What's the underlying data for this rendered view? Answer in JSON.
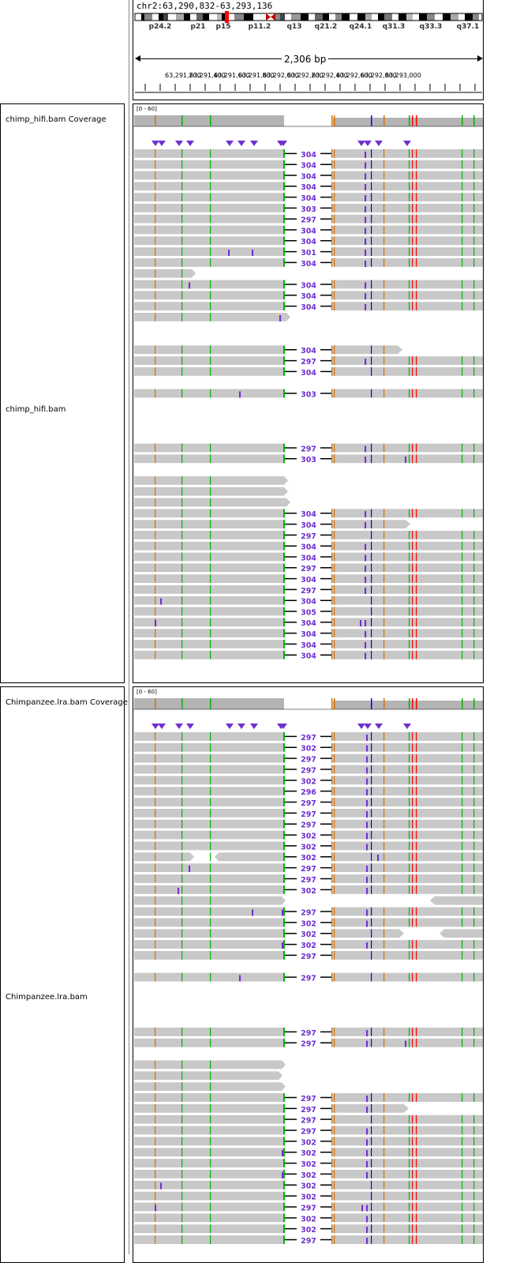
{
  "locus": "chr2:63,290,832-63,293,136",
  "bands": [
    "p24.2",
    "p21",
    "p15",
    "p11.2",
    "q13",
    "q21.2",
    "q24.1",
    "q31.3",
    "q33.3",
    "q37.1"
  ],
  "ruler": {
    "span_label": "2,306 bp",
    "tick_labels": [
      "63,291,200",
      "63,291,400",
      "63,291,600",
      "63,291,800",
      "63,292,000",
      "63,292,200",
      "63,292,400",
      "63,292,600",
      "63,292,800",
      "63,293,000"
    ]
  },
  "tracks": {
    "hifi_cov_name": "chimp_hifi.bam Coverage",
    "hifi_name": "chimp_hifi.bam",
    "lra_cov_name": "Chimpanzee.lra.bam Coverage",
    "lra_name": "Chimpanzee.lra.bam",
    "cov_range": "[0 - 60]"
  },
  "colors": {
    "read": "#c8c8c8",
    "coverage": "#b4b4b4",
    "insertion": "#7030d0",
    "del_label": "#7030d0",
    "mm_A": "#00b300",
    "mm_C": "#0000ff",
    "mm_G": "#d17105",
    "mm_T": "#ff0000"
  },
  "hifi_reads": [
    {
      "type": "split",
      "label": "304",
      "ins": [
        463
      ]
    },
    {
      "type": "split",
      "label": "304",
      "ins": [
        463
      ]
    },
    {
      "type": "split",
      "label": "304",
      "ins": [
        463
      ]
    },
    {
      "type": "split",
      "label": "304",
      "ins": [
        463
      ]
    },
    {
      "type": "split",
      "label": "304",
      "ins": [
        463
      ]
    },
    {
      "type": "split",
      "label": "303",
      "ins": [
        463
      ]
    },
    {
      "type": "split",
      "label": "297",
      "ins": [
        463
      ]
    },
    {
      "type": "split",
      "label": "304",
      "ins": [
        463
      ]
    },
    {
      "type": "split",
      "label": "304",
      "ins": [
        463
      ]
    },
    {
      "type": "split",
      "label": "301",
      "ins": [
        290,
        320,
        463
      ]
    },
    {
      "type": "split",
      "label": "304",
      "ins": [
        463
      ]
    },
    {
      "type": "leftonly",
      "end": 248
    },
    {
      "type": "split",
      "label": "304",
      "ins": [
        240,
        463
      ]
    },
    {
      "type": "split",
      "label": "304",
      "ins": [
        463
      ]
    },
    {
      "type": "split",
      "label": "304",
      "ins": [
        463
      ]
    },
    {
      "type": "leftonly",
      "end": 368,
      "ins": [
        355
      ]
    },
    {
      "type": "empty"
    },
    {
      "type": "empty"
    },
    {
      "type": "split",
      "label": "304",
      "rightEnd": 510
    },
    {
      "type": "split",
      "label": "297",
      "ins": [
        463
      ]
    },
    {
      "type": "split",
      "label": "304"
    },
    {
      "type": "empty"
    },
    {
      "type": "split",
      "label": "303",
      "ins": [
        304
      ]
    },
    {
      "type": "empty"
    },
    {
      "type": "empty"
    },
    {
      "type": "empty"
    },
    {
      "type": "empty"
    },
    {
      "type": "split",
      "label": "297",
      "ins": [
        463
      ]
    },
    {
      "type": "split",
      "label": "303",
      "ins": [
        463,
        514
      ]
    },
    {
      "type": "empty"
    },
    {
      "type": "leftonly",
      "end": 365
    },
    {
      "type": "leftonly",
      "end": 365
    },
    {
      "type": "leftonly",
      "end": 368
    },
    {
      "type": "split",
      "label": "304",
      "ins": [
        463
      ]
    },
    {
      "type": "split",
      "label": "304",
      "ins": [
        463
      ],
      "rightEnd": 520
    },
    {
      "type": "split",
      "label": "297"
    },
    {
      "type": "split",
      "label": "304",
      "ins": [
        463
      ]
    },
    {
      "type": "split",
      "label": "304",
      "ins": [
        463
      ]
    },
    {
      "type": "split",
      "label": "297",
      "ins": [
        463
      ]
    },
    {
      "type": "split",
      "label": "304",
      "ins": [
        463
      ]
    },
    {
      "type": "split",
      "label": "297",
      "ins": [
        463
      ]
    },
    {
      "type": "split",
      "label": "304",
      "ins": [
        204
      ]
    },
    {
      "type": "split",
      "label": "305"
    },
    {
      "type": "split",
      "label": "304",
      "ins": [
        197,
        457,
        463
      ]
    },
    {
      "type": "split",
      "label": "304",
      "ins": [
        463
      ]
    },
    {
      "type": "split",
      "label": "304",
      "ins": [
        463
      ]
    },
    {
      "type": "split",
      "label": "304",
      "ins": [
        463
      ]
    }
  ],
  "lra_reads": [
    {
      "type": "split",
      "label": "297",
      "ins": [
        465
      ]
    },
    {
      "type": "split",
      "label": "302",
      "ins": [
        465
      ]
    },
    {
      "type": "split",
      "label": "297",
      "ins": [
        465
      ]
    },
    {
      "type": "split",
      "label": "297",
      "ins": [
        465
      ]
    },
    {
      "type": "split",
      "label": "302",
      "ins": [
        465
      ]
    },
    {
      "type": "split",
      "label": "296",
      "ins": [
        465
      ]
    },
    {
      "type": "split",
      "label": "297",
      "ins": [
        465
      ]
    },
    {
      "type": "split",
      "label": "297",
      "ins": [
        465
      ]
    },
    {
      "type": "split",
      "label": "297",
      "ins": [
        465
      ]
    },
    {
      "type": "split",
      "label": "302",
      "ins": [
        465
      ]
    },
    {
      "type": "split",
      "label": "302",
      "ins": [
        465
      ]
    },
    {
      "type": "split",
      "label": "302",
      "ins": [
        479
      ],
      "gap": [
        246,
        272
      ]
    },
    {
      "type": "split",
      "label": "297",
      "ins": [
        240,
        465
      ]
    },
    {
      "type": "split",
      "label": "297",
      "ins": [
        465
      ]
    },
    {
      "type": "split",
      "label": "302",
      "ins": [
        226,
        465
      ]
    },
    {
      "type": "leftonly",
      "end": 362,
      "rightStart": 545
    },
    {
      "type": "split",
      "label": "297",
      "ins": [
        320,
        358,
        465
      ]
    },
    {
      "type": "split",
      "label": "302",
      "ins": [
        465
      ]
    },
    {
      "type": "split",
      "label": "302",
      "rightEnd": 512,
      "rightStart2": 557
    },
    {
      "type": "split",
      "label": "302",
      "ins": [
        358,
        465
      ]
    },
    {
      "type": "split",
      "label": "297"
    },
    {
      "type": "empty"
    },
    {
      "type": "split",
      "label": "297",
      "ins": [
        304
      ]
    },
    {
      "type": "empty"
    },
    {
      "type": "empty"
    },
    {
      "type": "empty"
    },
    {
      "type": "empty"
    },
    {
      "type": "split",
      "label": "297",
      "ins": [
        465
      ]
    },
    {
      "type": "split",
      "label": "297",
      "ins": [
        465,
        514
      ]
    },
    {
      "type": "empty"
    },
    {
      "type": "leftonly",
      "end": 362
    },
    {
      "type": "leftonly",
      "end": 358
    },
    {
      "type": "leftonly",
      "end": 362
    },
    {
      "type": "split",
      "label": "297",
      "ins": [
        465
      ]
    },
    {
      "type": "split",
      "label": "297",
      "ins": [
        465
      ],
      "rightEnd": 518
    },
    {
      "type": "split",
      "label": "297"
    },
    {
      "type": "split",
      "label": "297",
      "ins": [
        465
      ]
    },
    {
      "type": "split",
      "label": "302",
      "ins": [
        465
      ]
    },
    {
      "type": "split",
      "label": "302",
      "ins": [
        358,
        465
      ]
    },
    {
      "type": "split",
      "label": "302",
      "ins": [
        465
      ]
    },
    {
      "type": "split",
      "label": "302",
      "ins": [
        358,
        465
      ]
    },
    {
      "type": "split",
      "label": "302",
      "ins": [
        204
      ]
    },
    {
      "type": "split",
      "label": "302"
    },
    {
      "type": "split",
      "label": "297",
      "ins": [
        197,
        459,
        465
      ]
    },
    {
      "type": "split",
      "label": "302",
      "ins": [
        465
      ]
    },
    {
      "type": "split",
      "label": "302",
      "ins": [
        465
      ]
    },
    {
      "type": "split",
      "label": "297",
      "ins": [
        465
      ]
    }
  ]
}
